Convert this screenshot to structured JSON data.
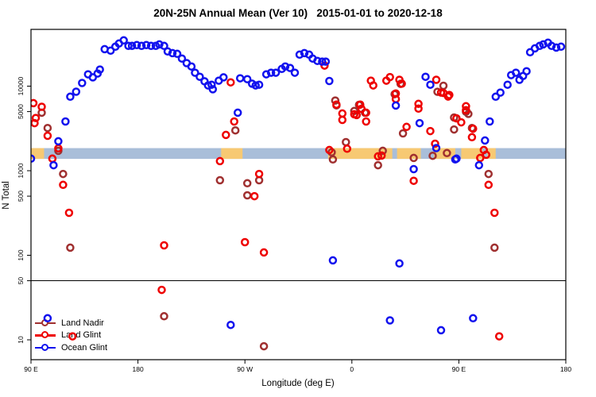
{
  "title": "20N-25N Annual Mean (Ver 10)   2015-01-01 to 2020-12-18",
  "axes": {
    "x_label": "Longitude (deg E)",
    "y_label": "N Total",
    "x_ticks": [
      {
        "label": "90 E",
        "lon": 90
      },
      {
        "label": "180",
        "lon": 180
      },
      {
        "label": "90 W",
        "lon": 270
      },
      {
        "label": "0",
        "lon": 360
      },
      {
        "label": "90 E",
        "lon": 450
      },
      {
        "label": "180",
        "lon": 540
      }
    ],
    "y_ticks": [
      {
        "label": "10",
        "value": 10
      },
      {
        "label": "50",
        "value": 50
      },
      {
        "label": "100",
        "value": 100
      },
      {
        "label": "500",
        "value": 500
      },
      {
        "label": "1000",
        "value": 1000
      },
      {
        "label": "5000",
        "value": 5000
      },
      {
        "label": "10000",
        "value": 10000
      }
    ]
  },
  "legend": {
    "items": [
      {
        "label": "Land Nadir",
        "color": "#A03030"
      },
      {
        "label": "Land Glint",
        "color": "#EE0000"
      },
      {
        "label": "Ocean Glint",
        "color": "#1212EE"
      }
    ]
  },
  "chart_data": {
    "type": "scatter",
    "title": "20N-25N Annual Mean (Ver 10)   2015-01-01 to 2020-12-18",
    "xlabel": "Longitude (deg E)",
    "ylabel": "N Total",
    "x_axis_deg_east": [
      90,
      540
    ],
    "ylim": [
      5.8,
      46800
    ],
    "y_scale": "log",
    "grid": false,
    "legend_position": "bottom-left-inside",
    "reference_line_y": 50,
    "map_strip": {
      "value_top": 1850,
      "value_bottom": 1380,
      "ocean_color": "#A9BED9",
      "land_color": "#F7C973",
      "land_segments_deg": [
        [
          90,
          101
        ],
        [
          250,
          268
        ],
        [
          340,
          394
        ],
        [
          398,
          418
        ],
        [
          429,
          447
        ],
        [
          452,
          470
        ],
        [
          474,
          481
        ]
      ]
    },
    "series": [
      {
        "name": "Land Nadir",
        "color": "#A03030",
        "points": [
          [
            99,
            4860
          ],
          [
            104,
            3200
          ],
          [
            113,
            1720
          ],
          [
            117,
            916
          ],
          [
            123,
            123
          ],
          [
            202,
            19
          ],
          [
            249,
            771
          ],
          [
            262,
            3000
          ],
          [
            272,
            710
          ],
          [
            272,
            512
          ],
          [
            282,
            771
          ],
          [
            286,
            8.4
          ],
          [
            343,
            1650
          ],
          [
            344,
            1360
          ],
          [
            346,
            6760
          ],
          [
            347,
            5920
          ],
          [
            355,
            2180
          ],
          [
            362,
            5080
          ],
          [
            366,
            6000
          ],
          [
            371,
            4860
          ],
          [
            382,
            1160
          ],
          [
            386,
            1720
          ],
          [
            396,
            8030
          ],
          [
            401,
            10650
          ],
          [
            403,
            2760
          ],
          [
            412,
            1415
          ],
          [
            428,
            1500
          ],
          [
            432,
            8570
          ],
          [
            437,
            10100
          ],
          [
            440,
            1615
          ],
          [
            446,
            4260
          ],
          [
            446,
            3070
          ],
          [
            456,
            4970
          ],
          [
            458,
            4700
          ],
          [
            461,
            3200
          ],
          [
            475,
            916
          ],
          [
            480,
            123
          ]
        ]
      },
      {
        "name": "Land Glint",
        "color": "#EE0000",
        "points": [
          [
            92,
            6300
          ],
          [
            93,
            3650
          ],
          [
            94,
            4200
          ],
          [
            99,
            5700
          ],
          [
            104,
            2590
          ],
          [
            108,
            1390
          ],
          [
            113,
            1840
          ],
          [
            117,
            680
          ],
          [
            122,
            318
          ],
          [
            125,
            11
          ],
          [
            200,
            39
          ],
          [
            202,
            131
          ],
          [
            249,
            1300
          ],
          [
            254,
            2650
          ],
          [
            258,
            11100
          ],
          [
            261,
            3820
          ],
          [
            270,
            143
          ],
          [
            278,
            500
          ],
          [
            282,
            916
          ],
          [
            286,
            108
          ],
          [
            337,
            17500
          ],
          [
            341,
            1760
          ],
          [
            347,
            6050
          ],
          [
            352,
            4750
          ],
          [
            352,
            3990
          ],
          [
            356,
            1820
          ],
          [
            362,
            4650
          ],
          [
            364,
            4550
          ],
          [
            367,
            6050
          ],
          [
            368,
            5400
          ],
          [
            372,
            4860
          ],
          [
            372,
            3820
          ],
          [
            376,
            11600
          ],
          [
            378,
            10200
          ],
          [
            382,
            1480
          ],
          [
            385,
            1510
          ],
          [
            389,
            11600
          ],
          [
            392,
            12800
          ],
          [
            397,
            8200
          ],
          [
            397,
            7050
          ],
          [
            400,
            11900
          ],
          [
            402,
            10700
          ],
          [
            406,
            3300
          ],
          [
            412,
            760
          ],
          [
            416,
            6180
          ],
          [
            416,
            5420
          ],
          [
            426,
            2940
          ],
          [
            430,
            2085
          ],
          [
            431,
            11900
          ],
          [
            435,
            8400
          ],
          [
            437,
            8300
          ],
          [
            441,
            7530
          ],
          [
            442,
            7860
          ],
          [
            448,
            4170
          ],
          [
            452,
            3730
          ],
          [
            456,
            5790
          ],
          [
            456,
            5190
          ],
          [
            461,
            2490
          ],
          [
            462,
            3140
          ],
          [
            468,
            1415
          ],
          [
            471,
            1760
          ],
          [
            473,
            1545
          ],
          [
            475,
            680
          ],
          [
            480,
            318
          ],
          [
            484,
            11
          ]
        ]
      },
      {
        "name": "Ocean Glint",
        "color": "#1212EE",
        "points": [
          [
            90,
            1390
          ],
          [
            104,
            18
          ],
          [
            109,
            1160
          ],
          [
            113,
            2230
          ],
          [
            119,
            3820
          ],
          [
            123,
            7500
          ],
          [
            128,
            8600
          ],
          [
            133,
            10900
          ],
          [
            138,
            13800
          ],
          [
            142,
            12700
          ],
          [
            146,
            14100
          ],
          [
            148,
            15700
          ],
          [
            152,
            27400
          ],
          [
            157,
            26300
          ],
          [
            161,
            29300
          ],
          [
            164,
            31900
          ],
          [
            168,
            34800
          ],
          [
            172,
            29900
          ],
          [
            175,
            29900
          ],
          [
            179,
            30600
          ],
          [
            183,
            29900
          ],
          [
            187,
            30600
          ],
          [
            191,
            29900
          ],
          [
            195,
            29900
          ],
          [
            198,
            31200
          ],
          [
            202,
            29900
          ],
          [
            205,
            25700
          ],
          [
            209,
            24600
          ],
          [
            213,
            24100
          ],
          [
            217,
            21200
          ],
          [
            221,
            18700
          ],
          [
            225,
            17100
          ],
          [
            228,
            14400
          ],
          [
            232,
            12900
          ],
          [
            236,
            11400
          ],
          [
            239,
            10200
          ],
          [
            242,
            10400
          ],
          [
            243,
            9200
          ],
          [
            248,
            11600
          ],
          [
            252,
            12700
          ],
          [
            258,
            15
          ],
          [
            264,
            4860
          ],
          [
            266,
            12400
          ],
          [
            272,
            12100
          ],
          [
            276,
            10700
          ],
          [
            279,
            10200
          ],
          [
            282,
            10400
          ],
          [
            288,
            13800
          ],
          [
            292,
            14400
          ],
          [
            296,
            14400
          ],
          [
            301,
            16000
          ],
          [
            304,
            17100
          ],
          [
            308,
            16400
          ],
          [
            312,
            14400
          ],
          [
            316,
            23600
          ],
          [
            320,
            24600
          ],
          [
            324,
            23600
          ],
          [
            327,
            21200
          ],
          [
            331,
            19900
          ],
          [
            335,
            19500
          ],
          [
            338,
            19500
          ],
          [
            341,
            11500
          ],
          [
            344,
            87
          ],
          [
            392,
            17
          ],
          [
            397,
            5900
          ],
          [
            400,
            80
          ],
          [
            412,
            1045
          ],
          [
            417,
            3650
          ],
          [
            422,
            12900
          ],
          [
            426,
            10400
          ],
          [
            431,
            1850
          ],
          [
            435,
            13
          ],
          [
            447,
            1360
          ],
          [
            448,
            1390
          ],
          [
            462,
            18
          ],
          [
            467,
            1160
          ],
          [
            472,
            2280
          ],
          [
            476,
            3820
          ],
          [
            481,
            7500
          ],
          [
            485,
            8400
          ],
          [
            491,
            10400
          ],
          [
            494,
            13500
          ],
          [
            498,
            14400
          ],
          [
            501,
            11900
          ],
          [
            504,
            13200
          ],
          [
            507,
            15000
          ],
          [
            510,
            25200
          ],
          [
            514,
            28000
          ],
          [
            518,
            29900
          ],
          [
            521,
            31200
          ],
          [
            525,
            32600
          ],
          [
            528,
            29900
          ],
          [
            532,
            28600
          ],
          [
            536,
            29300
          ]
        ]
      }
    ]
  }
}
